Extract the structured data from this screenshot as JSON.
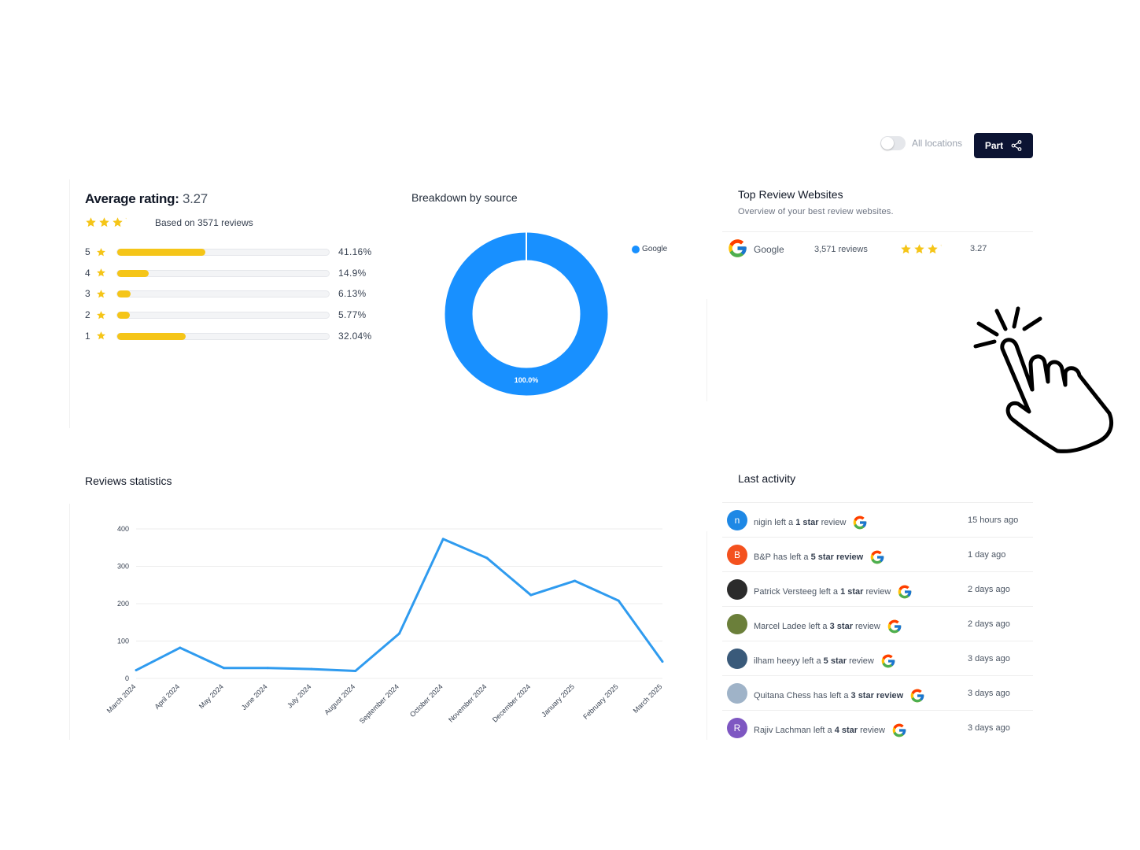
{
  "controls": {
    "toggle_label": "All locations",
    "share_label": "Part"
  },
  "average": {
    "title": "Average rating:",
    "value": "3.27",
    "based_on": "Based on 3571 reviews",
    "stars": 3.27,
    "rows": [
      {
        "label": "5",
        "pct": "41.16%",
        "fraction": 0.4116
      },
      {
        "label": "4",
        "pct": "14.9%",
        "fraction": 0.149
      },
      {
        "label": "3",
        "pct": "6.13%",
        "fraction": 0.0613
      },
      {
        "label": "2",
        "pct": "5.77%",
        "fraction": 0.0577
      },
      {
        "label": "1",
        "pct": "32.04%",
        "fraction": 0.3204
      }
    ]
  },
  "breakdown": {
    "title": "Breakdown by source",
    "legend": "Google",
    "slice_label": "100.0%",
    "color": "#1890ff"
  },
  "top_websites": {
    "title": "Top Review Websites",
    "subtitle": "Overview of your best review websites.",
    "rows": [
      {
        "name": "Google",
        "reviews": "3,571 reviews",
        "score": "3.27",
        "stars": 3.27
      }
    ]
  },
  "stats": {
    "title": "Reviews statistics"
  },
  "chart_data": {
    "type": "line",
    "x": [
      "March 2024",
      "April 2024",
      "May 2024",
      "June 2024",
      "July 2024",
      "August 2024",
      "September 2024",
      "October 2024",
      "November 2024",
      "December 2024",
      "January 2025",
      "February 2025",
      "March 2025"
    ],
    "series": [
      {
        "values": [
          22,
          82,
          28,
          28,
          25,
          20,
          120,
          373,
          322,
          223,
          261,
          208,
          45
        ],
        "color": "#2f9bef"
      }
    ],
    "yticks": [
      "0",
      "100",
      "200",
      "300",
      "400"
    ],
    "ylim": [
      0,
      400
    ],
    "grid": true
  },
  "activity": {
    "title": "Last activity",
    "items": [
      {
        "avatar": "n",
        "avatar_color": "#1e88e5",
        "name": "nigin",
        "verb": "left a",
        "rating": "1 star",
        "noun": "review",
        "time": "15 hours ago"
      },
      {
        "avatar": "B",
        "avatar_color": "#f4511e",
        "name": "B&P",
        "verb": "has left a",
        "rating": "5 star review",
        "noun": "",
        "time": "1 day ago"
      },
      {
        "avatar": "",
        "avatar_color": "#2b2b2b",
        "name": "Patrick Versteeg",
        "verb": "left a",
        "rating": "1 star",
        "noun": "review",
        "time": "2 days ago"
      },
      {
        "avatar": "",
        "avatar_color": "#6b7f3a",
        "name": "Marcel Ladee",
        "verb": "left a",
        "rating": "3 star",
        "noun": "review",
        "time": "2 days ago"
      },
      {
        "avatar": "",
        "avatar_color": "#3a5a7a",
        "name": "ilham heeyy",
        "verb": "left a",
        "rating": "5 star",
        "noun": "review",
        "time": "3 days ago"
      },
      {
        "avatar": "",
        "avatar_color": "#9fb3c8",
        "name": "Quitana Chess",
        "verb": "has left a",
        "rating": "3 star review",
        "noun": "",
        "time": "3 days ago"
      },
      {
        "avatar": "R",
        "avatar_color": "#7e57c2",
        "name": "Rajiv Lachman",
        "verb": "left a",
        "rating": "4 star",
        "noun": "review",
        "time": "3 days ago"
      }
    ]
  }
}
